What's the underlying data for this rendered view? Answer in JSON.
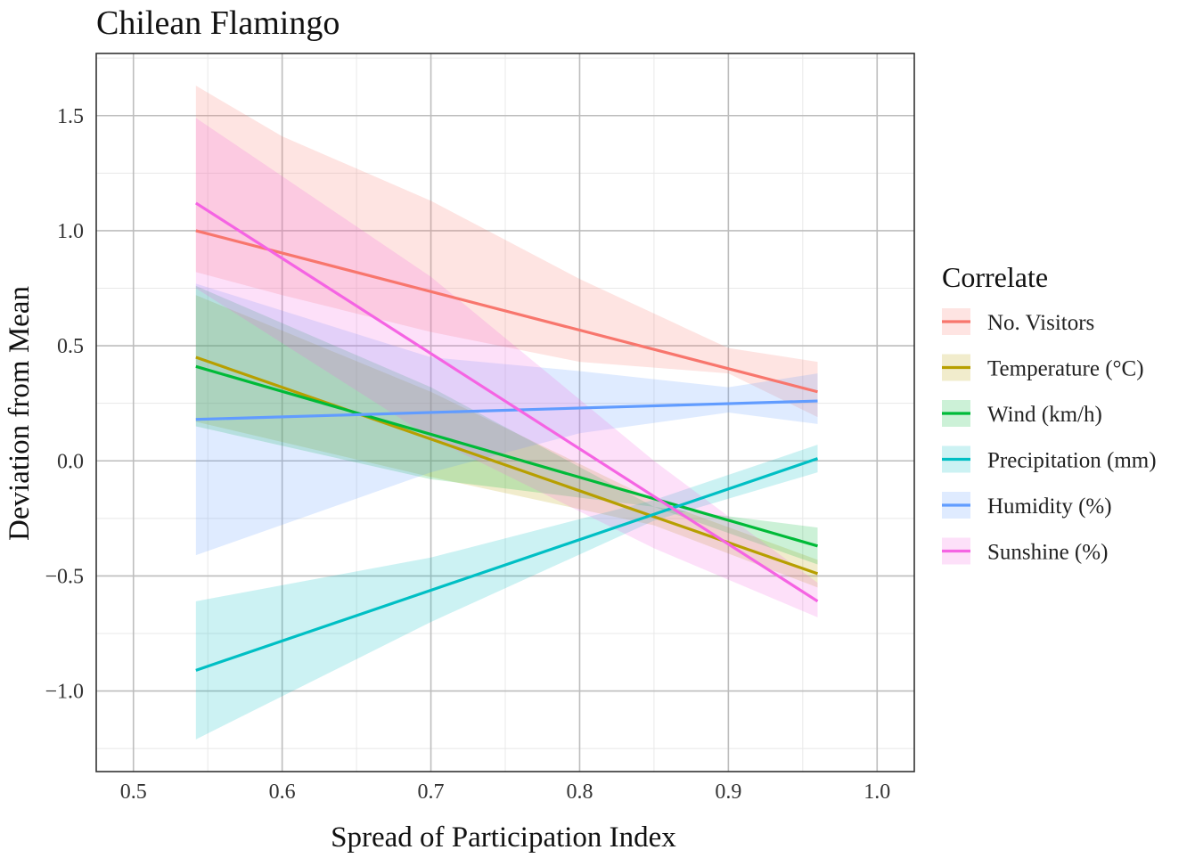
{
  "chart_data": {
    "type": "line",
    "title": "Chilean Flamingo",
    "xlabel": "Spread of Participation Index",
    "ylabel": "Deviation from Mean",
    "xlim": [
      0.475,
      1.025
    ],
    "ylim": [
      -1.35,
      1.77
    ],
    "x_ticks": [
      0.5,
      0.6,
      0.7,
      0.8,
      0.9,
      1.0
    ],
    "x_tick_labels": [
      "0.5",
      "0.6",
      "0.7",
      "0.8",
      "0.9",
      "1.0"
    ],
    "y_ticks": [
      -1.0,
      -0.5,
      0.0,
      0.5,
      1.0,
      1.5
    ],
    "y_tick_labels": [
      "−1.0",
      "−0.5",
      "0.0",
      "0.5",
      "1.0",
      "1.5"
    ],
    "grid": true,
    "legend_title": "Correlate",
    "legend_position": "right",
    "series": [
      {
        "name": "No. Visitors",
        "color": "#F8766D",
        "x": [
          0.542,
          0.96
        ],
        "y": [
          1.0,
          0.3
        ],
        "band_x": [
          0.542,
          0.6,
          0.7,
          0.8,
          0.9,
          0.96
        ],
        "band_lower": [
          0.82,
          0.72,
          0.56,
          0.43,
          0.38,
          0.19
        ],
        "band_upper": [
          1.63,
          1.41,
          1.13,
          0.79,
          0.49,
          0.43
        ]
      },
      {
        "name": "Temperature (°C)",
        "color": "#B79F00",
        "x": [
          0.542,
          0.96
        ],
        "y": [
          0.45,
          -0.49
        ],
        "band_x": [
          0.542,
          0.7,
          0.85,
          0.96
        ],
        "band_lower": [
          0.17,
          -0.07,
          -0.28,
          -0.55
        ],
        "band_upper": [
          0.72,
          0.3,
          -0.17,
          -0.43
        ]
      },
      {
        "name": "Wind (km/h)",
        "color": "#00BA38",
        "x": [
          0.542,
          0.96
        ],
        "y": [
          0.41,
          -0.37
        ],
        "band_x": [
          0.542,
          0.7,
          0.85,
          0.96
        ],
        "band_lower": [
          0.15,
          -0.08,
          -0.2,
          -0.45
        ],
        "band_upper": [
          0.76,
          0.32,
          -0.2,
          -0.29
        ]
      },
      {
        "name": "Precipitation (mm)",
        "color": "#00BFC4",
        "x": [
          0.542,
          0.96
        ],
        "y": [
          -0.91,
          0.01
        ],
        "band_x": [
          0.542,
          0.7,
          0.85,
          0.96
        ],
        "band_lower": [
          -1.21,
          -0.7,
          -0.26,
          -0.05
        ],
        "band_upper": [
          -0.61,
          -0.42,
          -0.17,
          0.07
        ]
      },
      {
        "name": "Humidity (%)",
        "color": "#619CFF",
        "x": [
          0.542,
          0.96
        ],
        "y": [
          0.18,
          0.26
        ],
        "band_x": [
          0.542,
          0.7,
          0.8,
          0.9,
          0.96
        ],
        "band_lower": [
          -0.41,
          -0.05,
          0.12,
          0.21,
          0.16
        ],
        "band_upper": [
          0.77,
          0.45,
          0.39,
          0.32,
          0.38
        ]
      },
      {
        "name": "Sunshine (%)",
        "color": "#F564E3",
        "x": [
          0.542,
          0.96
        ],
        "y": [
          1.12,
          -0.61
        ],
        "band_x": [
          0.542,
          0.7,
          0.85,
          0.96
        ],
        "band_lower": [
          0.75,
          0.1,
          -0.38,
          -0.68
        ],
        "band_upper": [
          1.49,
          0.8,
          0.0,
          -0.53
        ]
      }
    ]
  }
}
